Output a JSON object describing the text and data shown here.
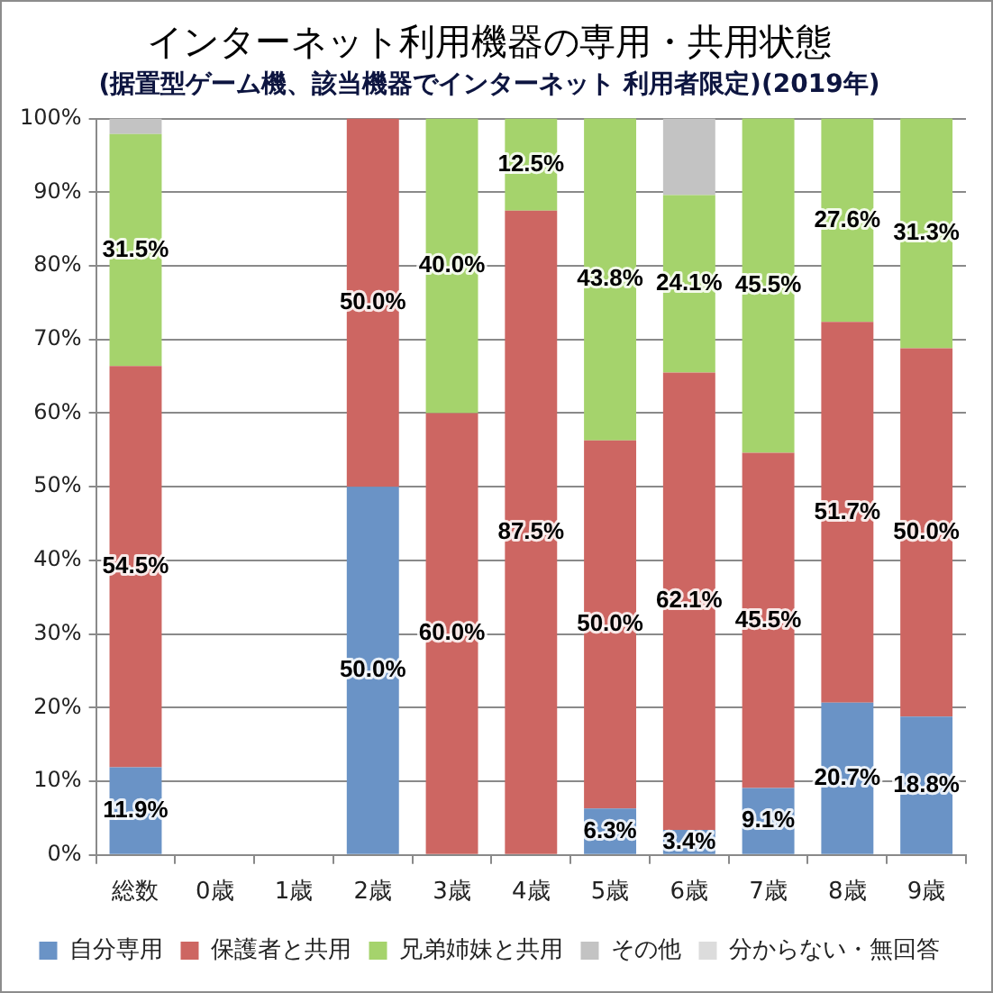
{
  "chart_data": {
    "type": "bar",
    "title": "インターネット利用機器の専用・共用状態",
    "subtitle": "(据置型ゲーム機、該当機器でインターネット 利用者限定)(2019年)",
    "categories": [
      "総数",
      "0歳",
      "1歳",
      "2歳",
      "3歳",
      "4歳",
      "5歳",
      "6歳",
      "7歳",
      "8歳",
      "9歳"
    ],
    "stacked": true,
    "ylim": [
      0,
      100
    ],
    "yticks": [
      {
        "value": 0,
        "label": "0%"
      },
      {
        "value": 10,
        "label": "10%"
      },
      {
        "value": 20,
        "label": "20%"
      },
      {
        "value": 30,
        "label": "30%"
      },
      {
        "value": 40,
        "label": "40%"
      },
      {
        "value": 50,
        "label": "50%"
      },
      {
        "value": 60,
        "label": "60%"
      },
      {
        "value": 70,
        "label": "70%"
      },
      {
        "value": 80,
        "label": "80%"
      },
      {
        "value": 90,
        "label": "90%"
      },
      {
        "value": 100,
        "label": "100%"
      }
    ],
    "grid": "y",
    "legend": "bottom",
    "series": [
      {
        "name": "自分専用",
        "color": "#6a93c6",
        "values": [
          11.9,
          null,
          null,
          50.0,
          null,
          null,
          6.3,
          3.4,
          9.1,
          20.7,
          18.8
        ],
        "value_labels": [
          "11.9%",
          null,
          null,
          "50.0%",
          null,
          null,
          "6.3%",
          "3.4%",
          "9.1%",
          "20.7%",
          "18.8%"
        ]
      },
      {
        "name": "保護者と共用",
        "color": "#cd6662",
        "values": [
          54.5,
          null,
          null,
          50.0,
          60.0,
          87.5,
          50.0,
          62.1,
          45.5,
          51.7,
          50.0
        ],
        "value_labels": [
          "54.5%",
          null,
          null,
          "50.0%",
          "60.0%",
          "87.5%",
          "50.0%",
          "62.1%",
          "45.5%",
          "51.7%",
          "50.0%"
        ]
      },
      {
        "name": "兄弟姉妹と共用",
        "color": "#a5d36c",
        "values": [
          31.5,
          null,
          null,
          null,
          40.0,
          12.5,
          43.8,
          24.1,
          45.5,
          27.6,
          31.3
        ],
        "value_labels": [
          "31.5%",
          null,
          null,
          null,
          "40.0%",
          "12.5%",
          "43.8%",
          "24.1%",
          "45.5%",
          "27.6%",
          "31.3%"
        ]
      },
      {
        "name": "その他",
        "color": "#c3c3c3",
        "values": [
          2.1,
          null,
          null,
          null,
          null,
          null,
          null,
          10.4,
          null,
          null,
          null
        ]
      },
      {
        "name": "分からない・無回答",
        "color": "#dcdcdc",
        "values": [
          null,
          null,
          null,
          null,
          null,
          null,
          null,
          null,
          null,
          null,
          null
        ]
      }
    ]
  }
}
